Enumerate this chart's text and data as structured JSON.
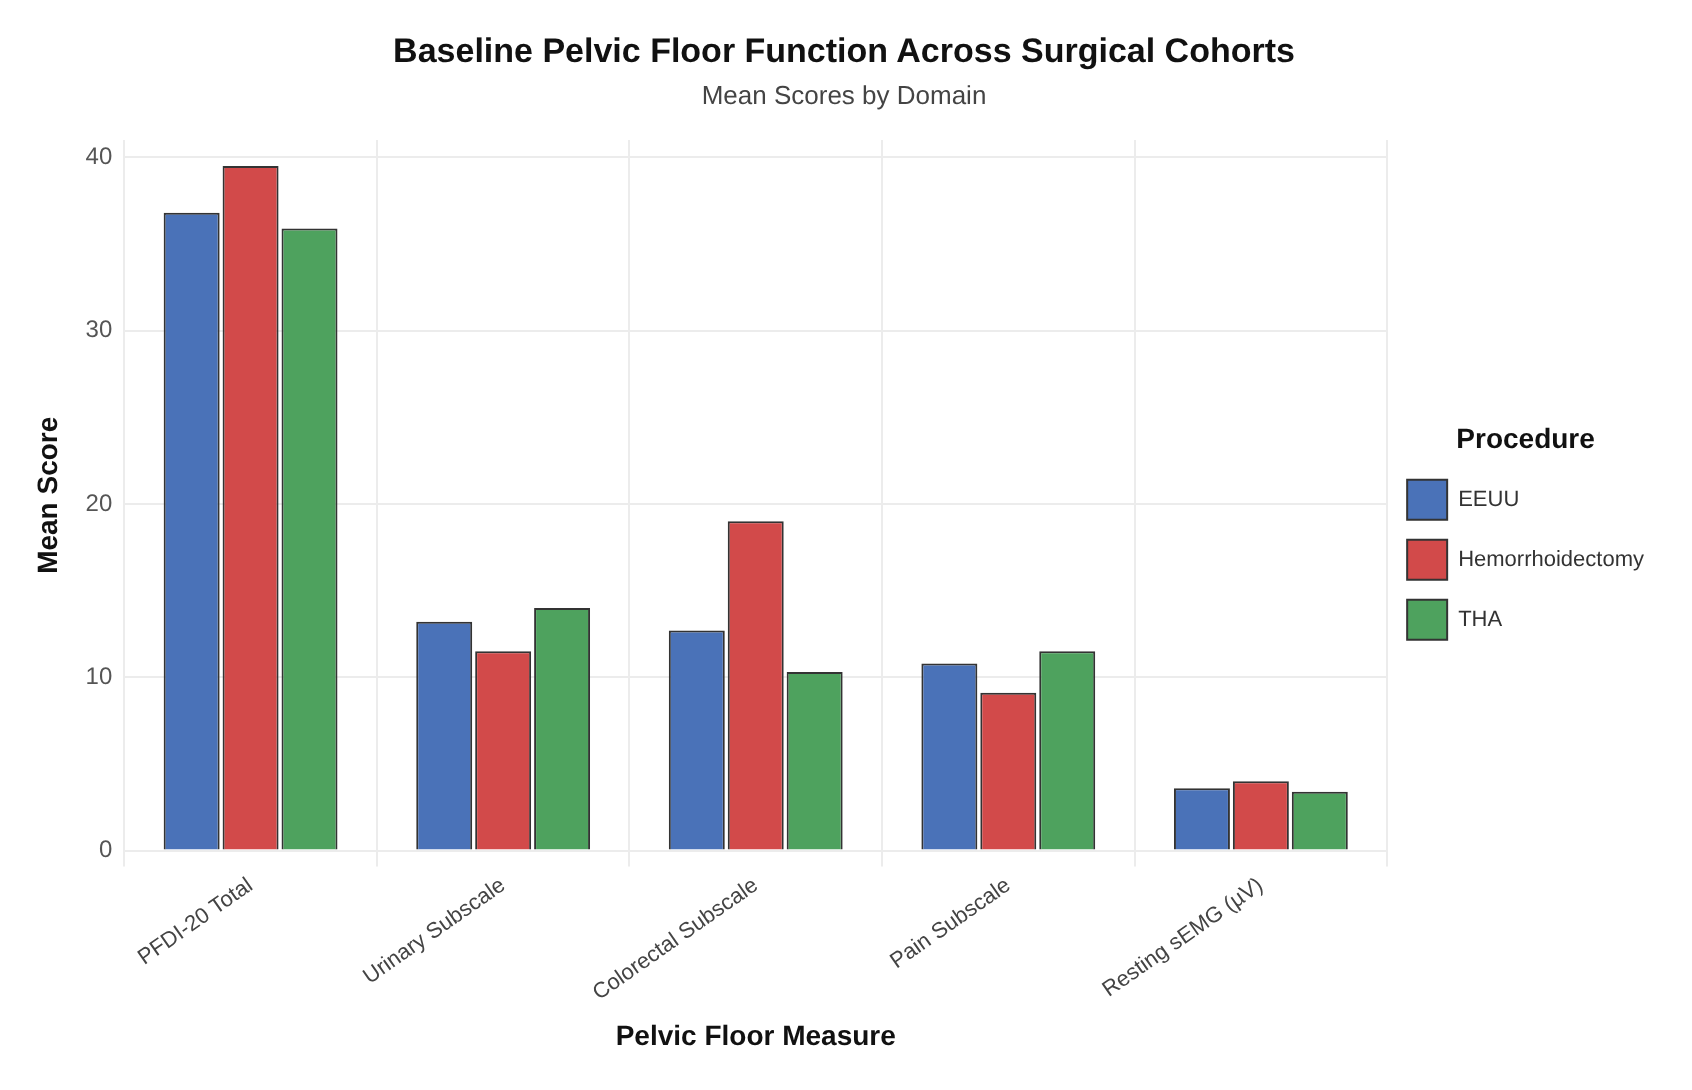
{
  "chart_data": {
    "type": "bar",
    "title": "Baseline Pelvic Floor Function Across Surgical Cohorts",
    "subtitle": "Mean Scores by Domain",
    "xlabel": "Pelvic Floor Measure",
    "ylabel": "Mean Score",
    "legend_title": "Procedure",
    "categories": [
      "PFDI-20 Total",
      "Urinary Subscale",
      "Colorectal Subscale",
      "Pain Subscale",
      "Resting sEMG (µV)"
    ],
    "series": [
      {
        "name": "EEUU",
        "color": "#4a72b8",
        "values": [
          36.8,
          13.2,
          12.7,
          10.8,
          3.6
        ]
      },
      {
        "name": "Hemorrhoidectomy",
        "color": "#d24a4a",
        "values": [
          39.5,
          11.5,
          19.0,
          9.1,
          4.0
        ]
      },
      {
        "name": "THA",
        "color": "#4ea25e",
        "values": [
          35.9,
          14.0,
          10.3,
          11.5,
          3.4
        ]
      }
    ],
    "ylim": [
      0,
      41
    ],
    "yticks": [
      0,
      10,
      20,
      30,
      40
    ],
    "grid": true,
    "legend": "right"
  }
}
